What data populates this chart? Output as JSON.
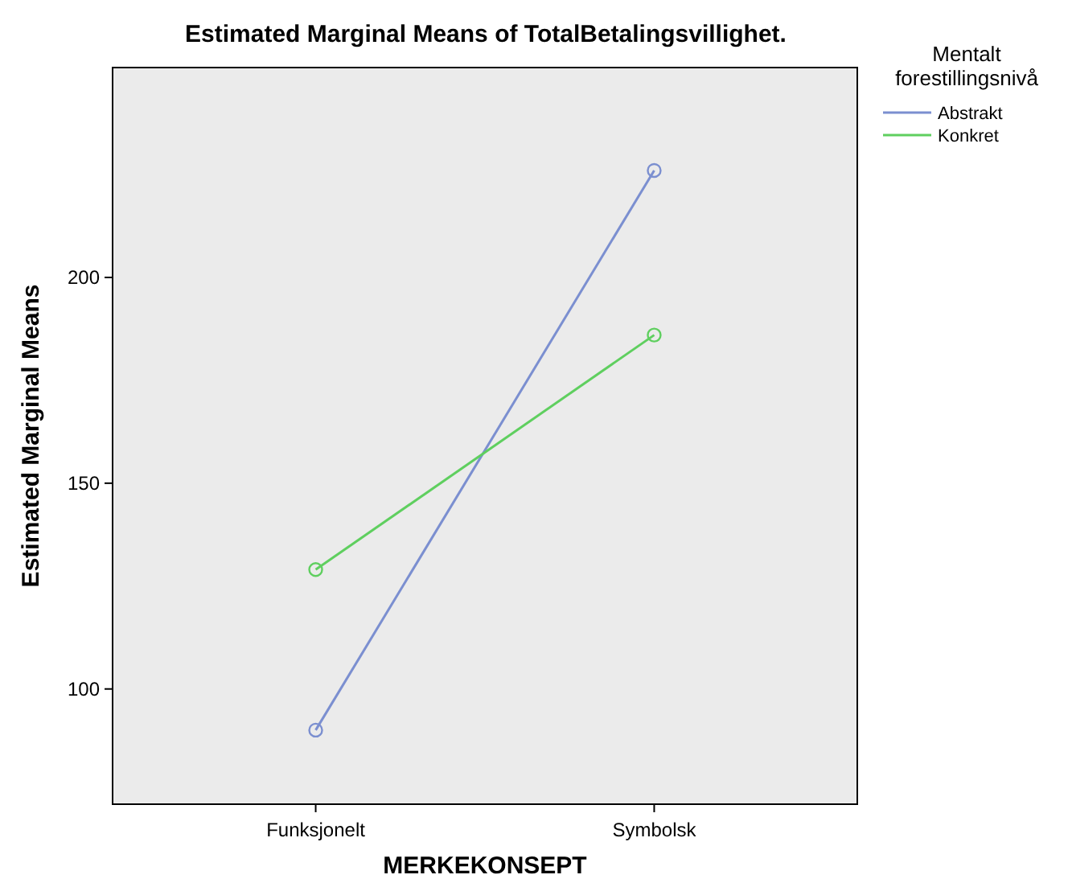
{
  "chart_data": {
    "type": "line",
    "title": "Estimated Marginal Means of TotalBetalingsvillighet.",
    "xlabel": "MERKEKONSEPT",
    "ylabel": "Estimated Marginal Means",
    "legend_title": "Mentalt forestillingsnivå",
    "categories": [
      "Funksjonelt",
      "Symbolsk"
    ],
    "series": [
      {
        "name": "Abstrakt",
        "color": "#7b8fd0",
        "values": [
          90,
          226
        ]
      },
      {
        "name": "Konkret",
        "color": "#5fcf5f",
        "values": [
          129,
          186
        ]
      }
    ],
    "ylim": [
      72,
      251
    ],
    "yticks": [
      100,
      150,
      200
    ],
    "grid": false,
    "legend": "top right",
    "marker": "circle",
    "line_style": "solid"
  }
}
